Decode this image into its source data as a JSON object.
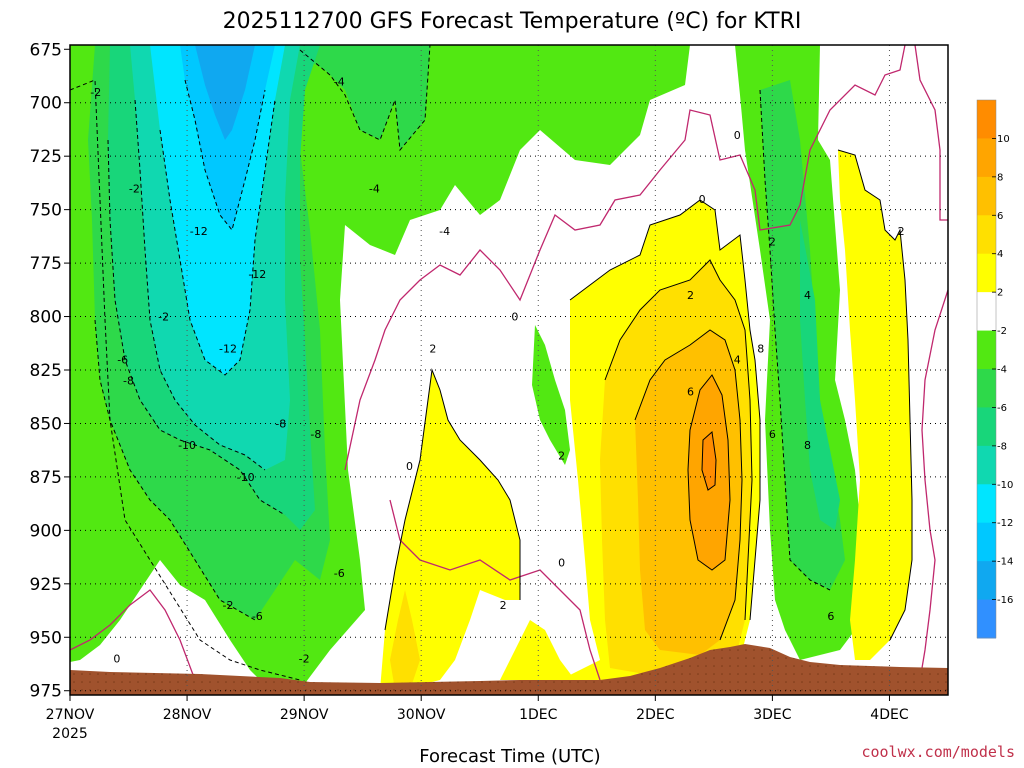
{
  "chart_data": {
    "type": "heatmap",
    "title": "2025112700 GFS Forecast Temperature (ºC) for KTRI",
    "xlabel": "Forecast Time (UTC)",
    "ylabel": "",
    "y_axis": {
      "ticks": [
        675,
        700,
        725,
        750,
        775,
        800,
        825,
        850,
        875,
        900,
        925,
        950,
        975
      ],
      "ylim": [
        673,
        977
      ],
      "reversed": true
    },
    "x_axis": {
      "ticks": [
        {
          "label": "27NOV",
          "day": 0
        },
        {
          "label": "28NOV",
          "day": 1
        },
        {
          "label": "29NOV",
          "day": 2
        },
        {
          "label": "30NOV",
          "day": 3
        },
        {
          "label": "1DEC",
          "day": 4
        },
        {
          "label": "2DEC",
          "day": 5
        },
        {
          "label": "3DEC",
          "day": 6
        },
        {
          "label": "4DEC",
          "day": 7
        }
      ],
      "year_label": "2025",
      "xlim": [
        0,
        7.5
      ]
    },
    "grid": "dotted",
    "colorbar": {
      "levels": [
        10,
        8,
        6,
        4,
        2,
        -2,
        -4,
        -6,
        -8,
        -10,
        -12,
        -14,
        -16
      ],
      "colors": [
        "#ff8c00",
        "#ffa500",
        "#ffc000",
        "#ffe000",
        "#ffff00",
        "#ffffff",
        "#52e812",
        "#2ed94a",
        "#18d67a",
        "#10d8b0",
        "#00e5ff",
        "#00c8ff",
        "#10a8f0",
        "#3090ff"
      ]
    },
    "contours": [
      {
        "level": -2,
        "style": "dashed",
        "points": [
          [
            0.22,
            695
          ],
          [
            0.55,
            740
          ],
          [
            0.8,
            800
          ],
          [
            1.35,
            935
          ],
          [
            2.0,
            960
          ]
        ]
      },
      {
        "level": -4,
        "style": "dashed",
        "points": [
          [
            2.3,
            690
          ],
          [
            2.6,
            740
          ],
          [
            3.2,
            760
          ]
        ]
      },
      {
        "level": -6,
        "style": "dashed",
        "points": [
          [
            0.45,
            820
          ],
          [
            1.6,
            940
          ],
          [
            2.3,
            920
          ]
        ]
      },
      {
        "level": -8,
        "style": "dashed",
        "points": [
          [
            0.5,
            830
          ],
          [
            1.8,
            850
          ],
          [
            2.1,
            855
          ]
        ]
      },
      {
        "level": -10,
        "style": "dashed",
        "points": [
          [
            1.0,
            860
          ],
          [
            1.5,
            875
          ]
        ]
      },
      {
        "level": -12,
        "style": "dashed",
        "points": [
          [
            1.1,
            760
          ],
          [
            1.35,
            815
          ],
          [
            1.6,
            780
          ]
        ]
      },
      {
        "level": 0,
        "style": "solid",
        "points": [
          [
            0.4,
            960
          ],
          [
            2.9,
            870
          ],
          [
            3.8,
            800
          ],
          [
            4.2,
            915
          ],
          [
            5.4,
            745
          ],
          [
            5.7,
            715
          ]
        ]
      },
      {
        "level": 2,
        "style": "solid",
        "points": [
          [
            3.1,
            815
          ],
          [
            3.7,
            935
          ],
          [
            4.2,
            865
          ],
          [
            5.3,
            790
          ],
          [
            6.0,
            765
          ],
          [
            7.1,
            760
          ]
        ]
      },
      {
        "level": 4,
        "style": "solid",
        "points": [
          [
            5.7,
            820
          ],
          [
            6.3,
            790
          ]
        ]
      },
      {
        "level": 6,
        "style": "solid",
        "points": [
          [
            5.3,
            835
          ],
          [
            6.0,
            855
          ],
          [
            6.5,
            940
          ]
        ]
      },
      {
        "level": 8,
        "style": "solid",
        "points": [
          [
            5.9,
            815
          ],
          [
            6.3,
            860
          ]
        ]
      }
    ],
    "contour_labels": [
      "-2",
      "-4",
      "-6",
      "-8",
      "-10",
      "-12",
      "0",
      "2",
      "4",
      "6",
      "8"
    ],
    "terrain": {
      "color": "#a0522d"
    }
  },
  "credit": "coolwx.com/models"
}
